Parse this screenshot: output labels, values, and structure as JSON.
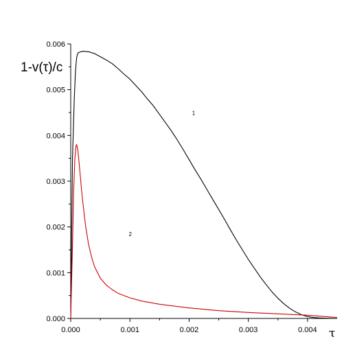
{
  "chart_data": {
    "type": "line",
    "xlabel": "τ",
    "ylabel": "1-v(τ)/c",
    "xlim": [
      0.0,
      0.0045
    ],
    "ylim": [
      0.0,
      0.006
    ],
    "x_ticks": [
      "0.000",
      "0.001",
      "0.002",
      "0.003",
      "0.004"
    ],
    "y_ticks": [
      "0.000",
      "0.001",
      "0.002",
      "0.003",
      "0.004",
      "0.005",
      "0.006"
    ],
    "grid": false,
    "annotations": [
      {
        "text": "1",
        "x": 0.00205,
        "y": 0.00445
      },
      {
        "text": "2",
        "x": 0.00098,
        "y": 0.0018
      }
    ],
    "series": [
      {
        "color": "#000000",
        "x": [
          0.0,
          3e-05,
          6e-05,
          8e-05,
          0.0001,
          0.00012,
          0.00015,
          0.0002,
          0.0003,
          0.0004,
          0.0005,
          0.0006,
          0.0007,
          0.0008,
          0.0009,
          0.001,
          0.0011,
          0.0012,
          0.0013,
          0.0014,
          0.0015,
          0.0016,
          0.0017,
          0.0018,
          0.0019,
          0.002,
          0.0021,
          0.0022,
          0.0023,
          0.0024,
          0.0025,
          0.0026,
          0.0027,
          0.0028,
          0.0029,
          0.003,
          0.0031,
          0.0032,
          0.0033,
          0.0034,
          0.0035,
          0.0036,
          0.0037,
          0.0038,
          0.0039,
          0.004,
          0.0041,
          0.0042,
          0.0043,
          0.0044,
          0.0045
        ],
        "y": [
          0.0,
          0.0035,
          0.0048,
          0.0054,
          0.0057,
          0.0058,
          0.00582,
          0.00584,
          0.00583,
          0.00579,
          0.00572,
          0.00565,
          0.00557,
          0.00546,
          0.00534,
          0.00523,
          0.00509,
          0.00495,
          0.00479,
          0.00464,
          0.00446,
          0.00428,
          0.0041,
          0.0039,
          0.00369,
          0.00347,
          0.00325,
          0.00304,
          0.00282,
          0.0026,
          0.00238,
          0.00216,
          0.00193,
          0.00171,
          0.0015,
          0.00129,
          0.0011,
          0.00091,
          0.00074,
          0.00058,
          0.00044,
          0.00032,
          0.00022,
          0.00014,
          8e-05,
          4e-05,
          2e-05,
          1e-05,
          5e-06,
          2e-06,
          0.0
        ]
      },
      {
        "color": "#cc0000",
        "x": [
          0.0,
          3e-05,
          5e-05,
          7e-05,
          9e-05,
          0.0001,
          0.00012,
          0.00014,
          0.00016,
          0.00018,
          0.0002,
          0.00025,
          0.0003,
          0.00035,
          0.0004,
          0.0005,
          0.0006,
          0.0007,
          0.0008,
          0.001,
          0.0012,
          0.0015,
          0.002,
          0.0025,
          0.003,
          0.0035,
          0.004,
          0.0043,
          0.0045
        ],
        "y": [
          0.0,
          0.0016,
          0.0028,
          0.0035,
          0.00378,
          0.0038,
          0.00368,
          0.00342,
          0.00314,
          0.00285,
          0.00259,
          0.00203,
          0.00163,
          0.00135,
          0.00114,
          0.00088,
          0.00073,
          0.00063,
          0.00055,
          0.00045,
          0.00038,
          0.00031,
          0.00023,
          0.00017,
          0.00013,
          0.0001,
          7e-05,
          4e-05,
          2e-05
        ]
      }
    ]
  }
}
